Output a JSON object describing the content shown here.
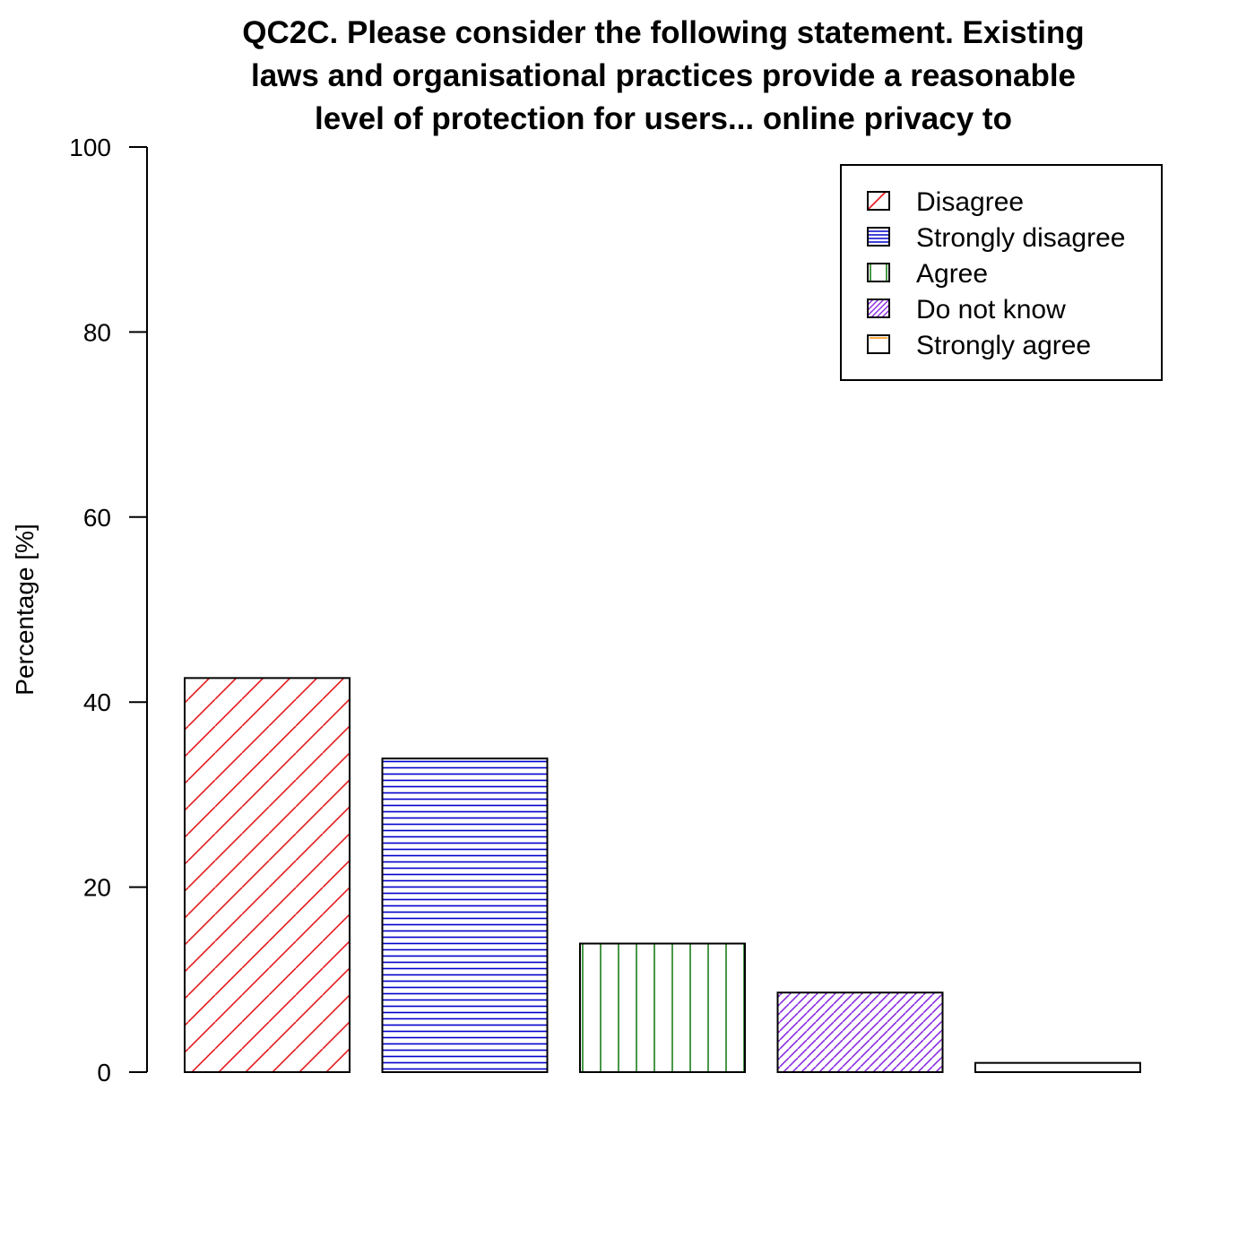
{
  "chart_data": {
    "type": "bar",
    "title_lines": [
      "QC2C. Please consider the following statement.  Existing",
      "laws and organisational practices provide a reasonable",
      "level of protection for users... online privacy to"
    ],
    "xlabel": "",
    "ylabel": "Percentage [%]",
    "ylim": [
      0,
      100
    ],
    "yticks": [
      "0",
      "20",
      "40",
      "60",
      "80",
      "100"
    ],
    "grid": false,
    "legend_position": "top-right",
    "categories": [
      "Disagree",
      "Strongly disagree",
      "Agree",
      "Do not know",
      "Strongly agree"
    ],
    "values": [
      42.6,
      33.9,
      13.9,
      8.6,
      1.0
    ],
    "colors": [
      "#e31a1c",
      "#0000cc",
      "#1a7f1a",
      "#8a2be2",
      "#ff8c00"
    ],
    "patterns": [
      "diagonal",
      "horizontal",
      "vertical",
      "diagonal-dense",
      "none"
    ]
  }
}
